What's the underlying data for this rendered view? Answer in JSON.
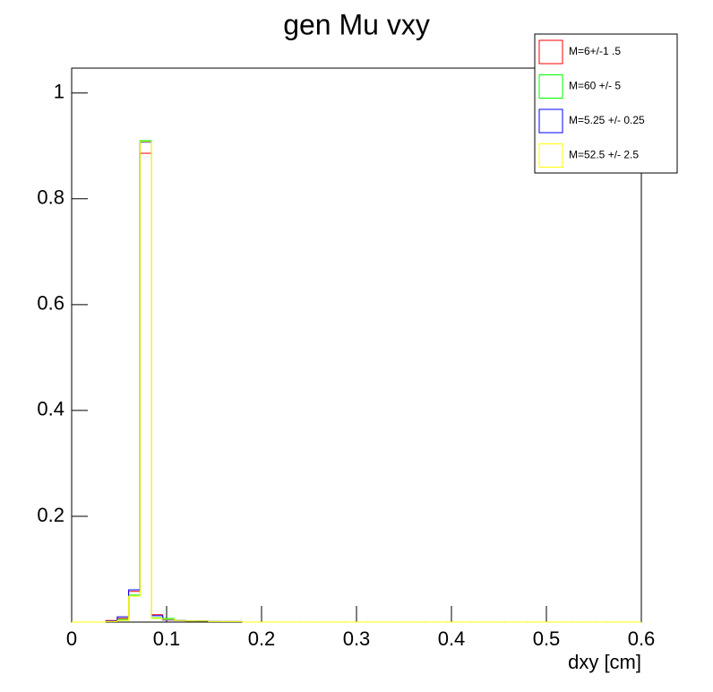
{
  "chart_data": {
    "type": "histogram",
    "title": "gen Mu vxy",
    "x_label": "dxy [cm]",
    "bins": [
      0,
      0.012,
      0.024,
      0.036,
      0.048,
      0.06,
      0.072,
      0.084,
      0.096,
      0.108,
      0.12,
      0.132,
      0.144,
      0.156,
      0.168,
      0.18,
      0.192,
      0.204,
      0.216,
      0.228,
      0.24,
      0.252,
      0.264,
      0.276,
      0.288,
      0.3,
      0.312,
      0.324,
      0.336,
      0.348,
      0.36,
      0.372,
      0.384,
      0.396,
      0.408,
      0.42,
      0.432,
      0.444,
      0.456,
      0.468,
      0.48,
      0.492,
      0.504,
      0.516,
      0.528,
      0.54,
      0.552,
      0.564,
      0.576,
      0.588,
      0.6
    ],
    "series": [
      {
        "name": "M=6+/-1 .5",
        "color": "#ff0000",
        "values": [
          0,
          0,
          0,
          0.003,
          0.007,
          0.058,
          0.886,
          0.014,
          0.004,
          0.003,
          0.002,
          0.002,
          0.001,
          0.001,
          0.001,
          0,
          0,
          0,
          0,
          0,
          0,
          0,
          0,
          0,
          0,
          0,
          0,
          0,
          0,
          0,
          0,
          0,
          0,
          0,
          0,
          0,
          0,
          0,
          0,
          0,
          0,
          0,
          0,
          0,
          0,
          0,
          0,
          0,
          0,
          0
        ]
      },
      {
        "name": "M=60 +/- 5",
        "color": "#00ff00",
        "values": [
          0,
          0,
          0,
          0.001,
          0.005,
          0.051,
          0.91,
          0.008,
          0.007,
          0.003,
          0.002,
          0.002,
          0.001,
          0.001,
          0.001,
          0,
          0,
          0,
          0,
          0,
          0,
          0,
          0,
          0,
          0,
          0,
          0,
          0,
          0,
          0,
          0,
          0,
          0,
          0,
          0,
          0,
          0,
          0,
          0,
          0,
          0,
          0,
          0,
          0,
          0,
          0,
          0,
          0,
          0,
          0
        ]
      },
      {
        "name": "M=5.25 +/- 0.25",
        "color": "#0000ff",
        "values": [
          0,
          0,
          0,
          0.002,
          0.01,
          0.061,
          0.907,
          0.012,
          0.004,
          0.003,
          0.002,
          0.002,
          0.001,
          0.001,
          0.001,
          0,
          0,
          0,
          0,
          0,
          0,
          0,
          0,
          0,
          0,
          0,
          0,
          0,
          0,
          0,
          0,
          0,
          0,
          0,
          0,
          0,
          0,
          0,
          0,
          0,
          0,
          0,
          0,
          0,
          0,
          0,
          0,
          0,
          0,
          0
        ]
      },
      {
        "name": "M=52.5 +/- 2.5",
        "color": "#ffff00",
        "values": [
          0,
          0,
          0,
          0.001,
          0.003,
          0.049,
          0.908,
          0.007,
          0.005,
          0.003,
          0.002,
          0.002,
          0.001,
          0.001,
          0.001,
          0,
          0,
          0,
          0,
          0,
          0,
          0,
          0,
          0,
          0,
          0,
          0,
          0,
          0,
          0,
          0,
          0,
          0,
          0,
          0,
          0,
          0,
          0,
          0,
          0,
          0,
          0,
          0,
          0,
          0,
          0,
          0,
          0,
          0,
          0
        ]
      }
    ],
    "xlim": [
      0,
      0.6
    ],
    "xticks": [
      0,
      0.1,
      0.2,
      0.3,
      0.4,
      0.5,
      0.6
    ],
    "ylim": [
      0,
      1.047
    ],
    "yticks": [
      0.2,
      0.4,
      0.6,
      0.8,
      1
    ],
    "legend": "top-right"
  }
}
